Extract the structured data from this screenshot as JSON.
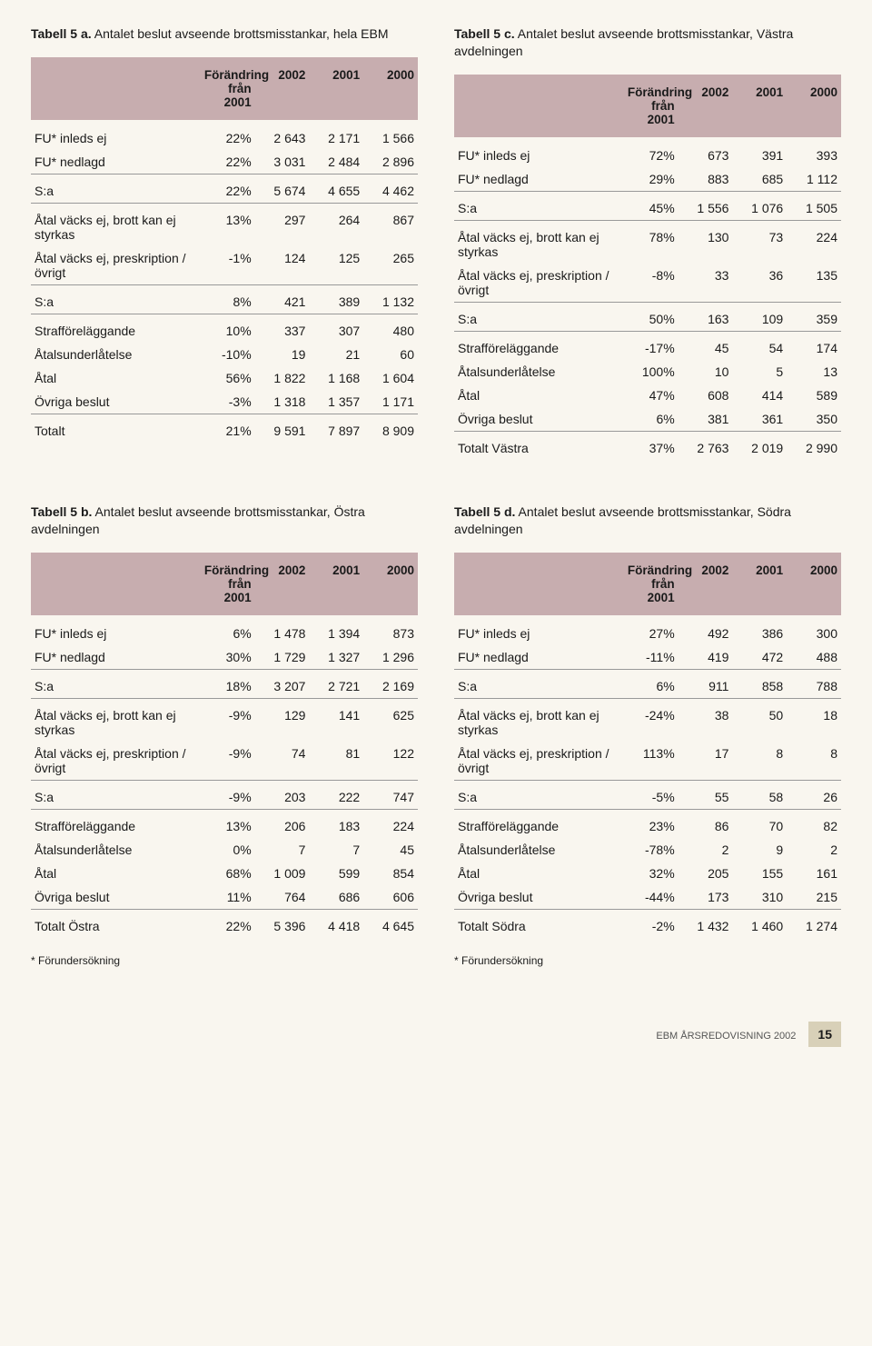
{
  "colors": {
    "header_bg": "#c7adaf",
    "page_bg": "#f9f6ef",
    "rule": "#999999",
    "footer_bg": "#d8d0b8"
  },
  "header": {
    "col1_top": "Förändring",
    "col1_bot": "från 2001",
    "c2": "2002",
    "c3": "2001",
    "c4": "2000"
  },
  "footnote": "* Förundersökning",
  "footer": {
    "text": "EBM ÅRSREDOVISNING 2002",
    "page": "15"
  },
  "tables": [
    {
      "caption_b": "Tabell 5 a.",
      "caption_r": " Antalet beslut avseende brottsmisstankar, hela EBM",
      "rows": [
        {
          "l": "FU* inleds ej",
          "p": "22%",
          "a": "2 643",
          "b": "2 171",
          "c": "1 566"
        },
        {
          "l": "FU* nedlagd",
          "p": "22%",
          "a": "3 031",
          "b": "2 484",
          "c": "2 896"
        },
        {
          "l": "S:a",
          "p": "22%",
          "a": "5 674",
          "b": "4 655",
          "c": "4 462",
          "rule": true
        },
        {
          "l": "Åtal väcks ej, brott kan ej styrkas",
          "p": "13%",
          "a": "297",
          "b": "264",
          "c": "867",
          "rule": true
        },
        {
          "l": "Åtal väcks ej, preskription /övrigt",
          "p": "-1%",
          "a": "124",
          "b": "125",
          "c": "265"
        },
        {
          "l": "S:a",
          "p": "8%",
          "a": "421",
          "b": "389",
          "c": "1 132",
          "rule": true
        },
        {
          "l": "Strafföreläggande",
          "p": "10%",
          "a": "337",
          "b": "307",
          "c": "480",
          "rule": true
        },
        {
          "l": "Åtalsunderlåtelse",
          "p": "-10%",
          "a": "19",
          "b": "21",
          "c": "60"
        },
        {
          "l": "Åtal",
          "p": "56%",
          "a": "1 822",
          "b": "1 168",
          "c": "1 604"
        },
        {
          "l": "Övriga beslut",
          "p": "-3%",
          "a": "1 318",
          "b": "1 357",
          "c": "1 171"
        },
        {
          "l": "Totalt",
          "p": "21%",
          "a": "9 591",
          "b": "7 897",
          "c": "8 909",
          "rule": true
        }
      ]
    },
    {
      "caption_b": "Tabell 5 c.",
      "caption_r": " Antalet beslut avseende brottsmisstankar, Västra avdelningen",
      "rows": [
        {
          "l": "FU* inleds ej",
          "p": "72%",
          "a": "673",
          "b": "391",
          "c": "393"
        },
        {
          "l": "FU* nedlagd",
          "p": "29%",
          "a": "883",
          "b": "685",
          "c": "1 112"
        },
        {
          "l": "S:a",
          "p": "45%",
          "a": "1 556",
          "b": "1 076",
          "c": "1 505",
          "rule": true
        },
        {
          "l": "Åtal väcks ej, brott kan ej styrkas",
          "p": "78%",
          "a": "130",
          "b": "73",
          "c": "224",
          "rule": true
        },
        {
          "l": "Åtal väcks ej, preskription /övrigt",
          "p": "-8%",
          "a": "33",
          "b": "36",
          "c": "135"
        },
        {
          "l": "S:a",
          "p": "50%",
          "a": "163",
          "b": "109",
          "c": "359",
          "rule": true
        },
        {
          "l": "Strafföreläggande",
          "p": "-17%",
          "a": "45",
          "b": "54",
          "c": "174",
          "rule": true
        },
        {
          "l": "Åtalsunderlåtelse",
          "p": "100%",
          "a": "10",
          "b": "5",
          "c": "13"
        },
        {
          "l": "Åtal",
          "p": "47%",
          "a": "608",
          "b": "414",
          "c": "589"
        },
        {
          "l": "Övriga beslut",
          "p": "6%",
          "a": "381",
          "b": "361",
          "c": "350"
        },
        {
          "l": "Totalt Västra",
          "p": "37%",
          "a": "2 763",
          "b": "2 019",
          "c": "2 990",
          "rule": true
        }
      ]
    },
    {
      "caption_b": "Tabell 5 b.",
      "caption_r": " Antalet beslut avseende brottsmisstankar, Östra avdelningen",
      "rows": [
        {
          "l": "FU* inleds ej",
          "p": "6%",
          "a": "1 478",
          "b": "1 394",
          "c": "873"
        },
        {
          "l": "FU* nedlagd",
          "p": "30%",
          "a": "1 729",
          "b": "1 327",
          "c": "1 296"
        },
        {
          "l": "S:a",
          "p": "18%",
          "a": "3 207",
          "b": "2 721",
          "c": "2 169",
          "rule": true
        },
        {
          "l": "Åtal väcks ej, brott kan ej styrkas",
          "p": "-9%",
          "a": "129",
          "b": "141",
          "c": "625",
          "rule": true
        },
        {
          "l": "Åtal väcks ej, preskription /övrigt",
          "p": "-9%",
          "a": "74",
          "b": "81",
          "c": "122"
        },
        {
          "l": "S:a",
          "p": "-9%",
          "a": "203",
          "b": "222",
          "c": "747",
          "rule": true
        },
        {
          "l": "Strafföreläggande",
          "p": "13%",
          "a": "206",
          "b": "183",
          "c": "224",
          "rule": true
        },
        {
          "l": "Åtalsunderlåtelse",
          "p": "0%",
          "a": "7",
          "b": "7",
          "c": "45"
        },
        {
          "l": "Åtal",
          "p": "68%",
          "a": "1 009",
          "b": "599",
          "c": "854"
        },
        {
          "l": "Övriga beslut",
          "p": "11%",
          "a": "764",
          "b": "686",
          "c": "606"
        },
        {
          "l": "Totalt Östra",
          "p": "22%",
          "a": "5 396",
          "b": "4 418",
          "c": "4 645",
          "rule": true
        }
      ],
      "footnote": true
    },
    {
      "caption_b": "Tabell 5 d.",
      "caption_r": " Antalet beslut avseende brottsmisstankar, Södra avdelningen",
      "rows": [
        {
          "l": "FU* inleds ej",
          "p": "27%",
          "a": "492",
          "b": "386",
          "c": "300"
        },
        {
          "l": "FU* nedlagd",
          "p": "-11%",
          "a": "419",
          "b": "472",
          "c": "488"
        },
        {
          "l": "S:a",
          "p": "6%",
          "a": "911",
          "b": "858",
          "c": "788",
          "rule": true
        },
        {
          "l": "Åtal väcks ej, brott kan ej styrkas",
          "p": "-24%",
          "a": "38",
          "b": "50",
          "c": "18",
          "rule": true
        },
        {
          "l": "Åtal väcks ej, preskription /övrigt",
          "p": "113%",
          "a": "17",
          "b": "8",
          "c": "8"
        },
        {
          "l": "S:a",
          "p": "-5%",
          "a": "55",
          "b": "58",
          "c": "26",
          "rule": true
        },
        {
          "l": "Strafföreläggande",
          "p": "23%",
          "a": "86",
          "b": "70",
          "c": "82",
          "rule": true
        },
        {
          "l": "Åtalsunderlåtelse",
          "p": "-78%",
          "a": "2",
          "b": "9",
          "c": "2"
        },
        {
          "l": "Åtal",
          "p": "32%",
          "a": "205",
          "b": "155",
          "c": "161"
        },
        {
          "l": "Övriga beslut",
          "p": "-44%",
          "a": "173",
          "b": "310",
          "c": "215"
        },
        {
          "l": "Totalt Södra",
          "p": "-2%",
          "a": "1 432",
          "b": "1 460",
          "c": "1 274",
          "rule": true
        }
      ],
      "footnote": true
    }
  ]
}
